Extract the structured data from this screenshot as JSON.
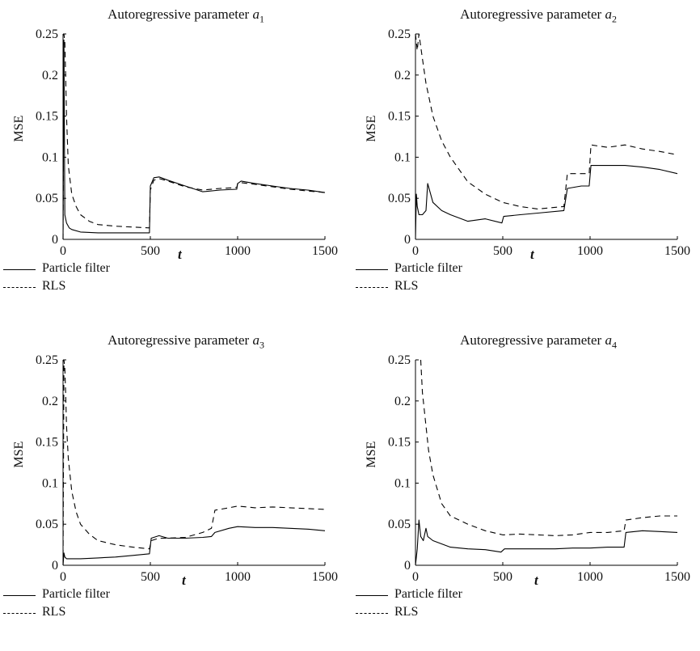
{
  "chart_data": [
    {
      "type": "line",
      "title": "Autoregressive parameter",
      "title_symbol": "a",
      "title_index": "1",
      "xlabel": "t",
      "ylabel": "MSE",
      "xlim": [
        0,
        1500
      ],
      "ylim": [
        0,
        0.25
      ],
      "xticks": [
        "0",
        "500",
        "1000",
        "1500"
      ],
      "yticks": [
        "0",
        "0.05",
        "0.1",
        "0.15",
        "0.2",
        "0.25"
      ],
      "series": [
        {
          "name": "Particle filter",
          "style": "solid",
          "x": [
            0,
            5,
            10,
            20,
            35,
            50,
            100,
            200,
            300,
            400,
            495,
            500,
            520,
            550,
            600,
            700,
            800,
            900,
            995,
            1000,
            1020,
            1100,
            1200,
            1300,
            1400,
            1500
          ],
          "y": [
            0.0,
            0.24,
            0.03,
            0.02,
            0.014,
            0.012,
            0.009,
            0.008,
            0.008,
            0.008,
            0.008,
            0.065,
            0.075,
            0.076,
            0.072,
            0.065,
            0.058,
            0.06,
            0.061,
            0.068,
            0.071,
            0.068,
            0.065,
            0.062,
            0.06,
            0.057
          ]
        },
        {
          "name": "RLS",
          "style": "dashed",
          "x": [
            0,
            5,
            10,
            15,
            20,
            30,
            50,
            75,
            100,
            150,
            200,
            300,
            400,
            495,
            500,
            520,
            550,
            600,
            700,
            800,
            900,
            995,
            1000,
            1020,
            1100,
            1200,
            1300,
            1400,
            1500
          ],
          "y": [
            0.0,
            0.25,
            0.24,
            0.2,
            0.15,
            0.09,
            0.055,
            0.04,
            0.03,
            0.022,
            0.018,
            0.016,
            0.015,
            0.014,
            0.06,
            0.072,
            0.074,
            0.071,
            0.064,
            0.06,
            0.062,
            0.063,
            0.068,
            0.069,
            0.067,
            0.064,
            0.061,
            0.059,
            0.057
          ]
        }
      ]
    },
    {
      "type": "line",
      "title": "Autoregressive parameter",
      "title_symbol": "a",
      "title_index": "2",
      "xlabel": "t",
      "ylabel": "MSE",
      "xlim": [
        0,
        1500
      ],
      "ylim": [
        0,
        0.25
      ],
      "xticks": [
        "0",
        "500",
        "1000",
        "1500"
      ],
      "yticks": [
        "0",
        "0.05",
        "0.1",
        "0.15",
        "0.2",
        "0.25"
      ],
      "series": [
        {
          "name": "Particle filter",
          "style": "solid",
          "x": [
            0,
            5,
            10,
            20,
            40,
            60,
            70,
            100,
            150,
            200,
            300,
            400,
            495,
            505,
            600,
            700,
            850,
            870,
            950,
            995,
            1005,
            1100,
            1200,
            1300,
            1400,
            1500
          ],
          "y": [
            0.0,
            0.055,
            0.04,
            0.03,
            0.03,
            0.035,
            0.068,
            0.045,
            0.035,
            0.03,
            0.022,
            0.025,
            0.02,
            0.028,
            0.03,
            0.032,
            0.035,
            0.062,
            0.065,
            0.065,
            0.09,
            0.09,
            0.09,
            0.088,
            0.085,
            0.08
          ]
        },
        {
          "name": "RLS",
          "style": "dashed",
          "x": [
            0,
            10,
            20,
            40,
            60,
            100,
            150,
            200,
            300,
            400,
            500,
            600,
            700,
            850,
            870,
            950,
            995,
            1005,
            1100,
            1200,
            1300,
            1400,
            1500
          ],
          "y": [
            0.25,
            0.23,
            0.25,
            0.22,
            0.19,
            0.15,
            0.12,
            0.1,
            0.07,
            0.055,
            0.045,
            0.04,
            0.037,
            0.04,
            0.08,
            0.08,
            0.08,
            0.115,
            0.112,
            0.115,
            0.11,
            0.107,
            0.103
          ]
        }
      ]
    },
    {
      "type": "line",
      "title": "Autoregressive parameter",
      "title_symbol": "a",
      "title_index": "3",
      "xlabel": "t",
      "ylabel": "MSE",
      "xlim": [
        0,
        1500
      ],
      "ylim": [
        0,
        0.25
      ],
      "xticks": [
        "0",
        "500",
        "1000",
        "1500"
      ],
      "yticks": [
        "0",
        "0.05",
        "0.1",
        "0.15",
        "0.2",
        "0.25"
      ],
      "series": [
        {
          "name": "Particle filter",
          "style": "solid",
          "x": [
            0,
            5,
            10,
            20,
            50,
            100,
            200,
            300,
            400,
            495,
            505,
            550,
            600,
            700,
            800,
            850,
            870,
            950,
            1000,
            1100,
            1200,
            1300,
            1400,
            1500
          ],
          "y": [
            0.0,
            0.015,
            0.01,
            0.008,
            0.008,
            0.008,
            0.009,
            0.01,
            0.012,
            0.014,
            0.033,
            0.036,
            0.033,
            0.033,
            0.034,
            0.035,
            0.04,
            0.045,
            0.047,
            0.046,
            0.046,
            0.045,
            0.044,
            0.042
          ]
        },
        {
          "name": "RLS",
          "style": "dashed",
          "x": [
            0,
            5,
            10,
            15,
            20,
            30,
            50,
            75,
            100,
            150,
            200,
            300,
            400,
            495,
            505,
            550,
            600,
            700,
            800,
            850,
            870,
            950,
            1000,
            1100,
            1200,
            1300,
            1400,
            1500
          ],
          "y": [
            0.0,
            0.25,
            0.24,
            0.21,
            0.17,
            0.13,
            0.09,
            0.065,
            0.05,
            0.038,
            0.03,
            0.025,
            0.022,
            0.02,
            0.03,
            0.033,
            0.033,
            0.034,
            0.04,
            0.045,
            0.067,
            0.07,
            0.072,
            0.07,
            0.071,
            0.07,
            0.069,
            0.068
          ]
        }
      ]
    },
    {
      "type": "line",
      "title": "Autoregressive parameter",
      "title_symbol": "a",
      "title_index": "4",
      "xlabel": "t",
      "ylabel": "MSE",
      "xlim": [
        0,
        1500
      ],
      "ylim": [
        0,
        0.25
      ],
      "xticks": [
        "0",
        "500",
        "1000",
        "1500"
      ],
      "yticks": [
        "0",
        "0.05",
        "0.1",
        "0.15",
        "0.2",
        "0.25"
      ],
      "series": [
        {
          "name": "Particle filter",
          "style": "solid",
          "x": [
            0,
            10,
            20,
            30,
            45,
            60,
            70,
            100,
            200,
            300,
            400,
            490,
            510,
            600,
            700,
            800,
            900,
            1000,
            1100,
            1195,
            1205,
            1300,
            1400,
            1500
          ],
          "y": [
            0.0,
            0.02,
            0.055,
            0.035,
            0.03,
            0.045,
            0.035,
            0.03,
            0.022,
            0.02,
            0.019,
            0.016,
            0.02,
            0.02,
            0.02,
            0.02,
            0.021,
            0.021,
            0.022,
            0.022,
            0.04,
            0.042,
            0.041,
            0.04
          ]
        },
        {
          "name": "RLS",
          "style": "dashed",
          "x": [
            30,
            40,
            50,
            75,
            100,
            150,
            200,
            300,
            400,
            500,
            600,
            700,
            800,
            900,
            1000,
            1100,
            1195,
            1205,
            1300,
            1400,
            1500
          ],
          "y": [
            0.25,
            0.21,
            0.19,
            0.14,
            0.11,
            0.075,
            0.06,
            0.05,
            0.042,
            0.037,
            0.038,
            0.037,
            0.036,
            0.037,
            0.04,
            0.04,
            0.042,
            0.055,
            0.058,
            0.06,
            0.06
          ]
        }
      ]
    }
  ]
}
